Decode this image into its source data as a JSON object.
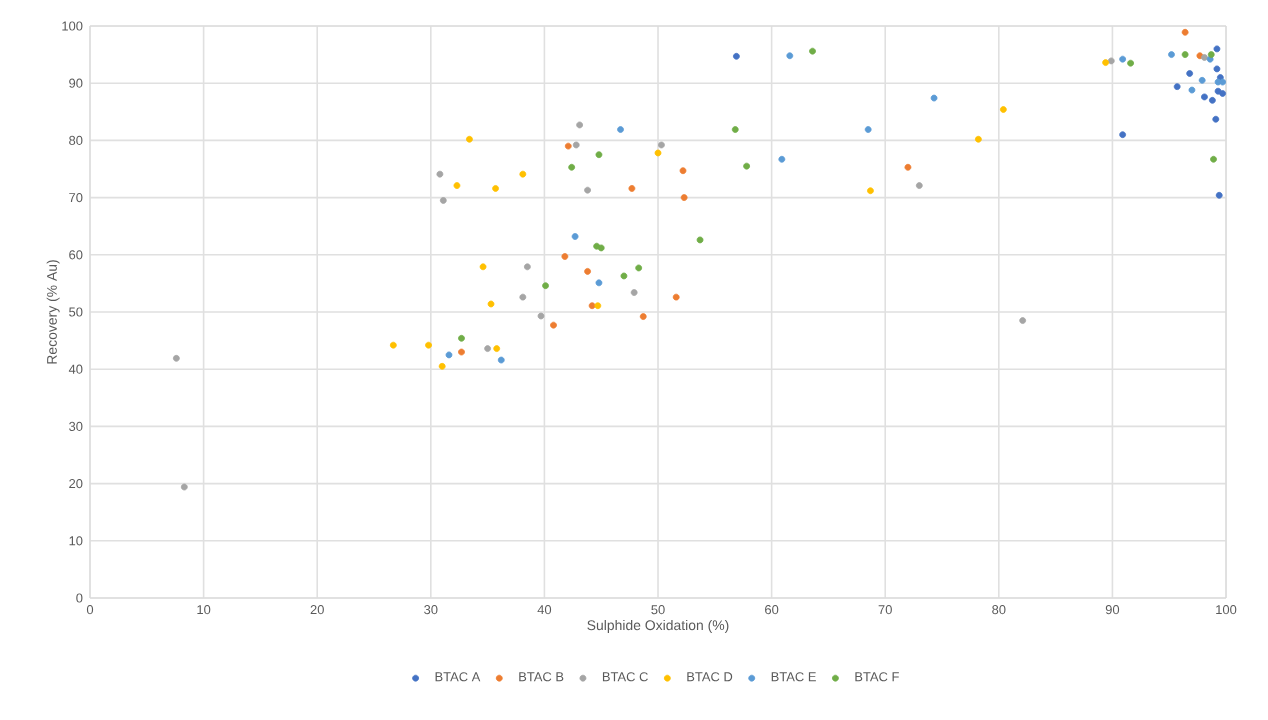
{
  "chart_data": {
    "type": "scatter",
    "xlabel": "Sulphide Oxidation (%)",
    "ylabel": "Recovery (% Au)",
    "xlim": [
      0,
      100
    ],
    "xticks": [
      0,
      10,
      20,
      30,
      40,
      50,
      60,
      70,
      80,
      90,
      100
    ],
    "ylim": [
      0,
      100
    ],
    "yticks": [
      0,
      10,
      20,
      30,
      40,
      50,
      60,
      70,
      80,
      90,
      100
    ],
    "grid": true,
    "legend": "bottom",
    "marker": "circle",
    "series": [
      {
        "name": "BTAC A",
        "color": "#4472c4",
        "x": [
          56.9,
          90.9,
          99.2,
          99.2,
          96.8,
          99.5,
          95.7,
          99.3,
          99.7,
          98.1,
          98.8,
          99.1,
          99.4
        ],
        "values": [
          94.7,
          81.0,
          96.0,
          92.5,
          91.7,
          91.0,
          89.4,
          88.6,
          88.2,
          87.6,
          87.0,
          83.7,
          70.4
        ]
      },
      {
        "name": "BTAC B",
        "color": "#ed7d31",
        "x": [
          32.7,
          42.1,
          52.2,
          47.7,
          52.3,
          41.8,
          43.8,
          51.6,
          44.2,
          48.7,
          40.8,
          72.0,
          96.4,
          97.7
        ],
        "values": [
          43.0,
          79.0,
          74.7,
          71.6,
          70.0,
          59.7,
          57.1,
          52.6,
          51.1,
          49.2,
          47.7,
          75.3,
          98.9,
          94.8
        ]
      },
      {
        "name": "BTAC C",
        "color": "#a5a5a5",
        "x": [
          7.6,
          8.3,
          43.1,
          42.8,
          50.3,
          30.8,
          43.8,
          31.1,
          38.5,
          47.9,
          38.1,
          39.7,
          35.0,
          73.0,
          82.1,
          89.9,
          98.1
        ],
        "values": [
          41.9,
          19.4,
          82.7,
          79.2,
          79.2,
          74.1,
          71.3,
          69.5,
          57.9,
          53.4,
          52.6,
          49.3,
          43.6,
          72.1,
          48.5,
          93.9,
          94.5
        ]
      },
      {
        "name": "BTAC D",
        "color": "#ffc000",
        "x": [
          26.7,
          29.8,
          31.0,
          33.4,
          50.0,
          38.1,
          32.3,
          35.7,
          34.6,
          35.3,
          44.7,
          35.8,
          80.4,
          78.2,
          68.7,
          89.4
        ],
        "values": [
          44.2,
          44.2,
          40.5,
          80.2,
          77.8,
          74.1,
          72.1,
          71.6,
          57.9,
          51.4,
          51.1,
          43.6,
          85.4,
          80.2,
          71.2,
          93.6
        ]
      },
      {
        "name": "BTAC E",
        "color": "#5b9bd5",
        "x": [
          31.6,
          46.7,
          42.7,
          44.8,
          36.2,
          61.6,
          74.3,
          68.5,
          60.9,
          90.9,
          95.2,
          98.6,
          97.9,
          99.3,
          99.7,
          97.0
        ],
        "values": [
          42.5,
          81.9,
          63.2,
          55.1,
          41.6,
          94.8,
          87.4,
          81.9,
          76.7,
          94.2,
          95.0,
          94.2,
          90.5,
          90.2,
          90.2,
          88.8
        ]
      },
      {
        "name": "BTAC F",
        "color": "#70ad47",
        "x": [
          32.7,
          56.8,
          44.8,
          57.8,
          42.4,
          44.6,
          45.0,
          53.7,
          48.3,
          47.0,
          40.1,
          63.6,
          91.6,
          96.4,
          98.7,
          98.9
        ],
        "values": [
          45.4,
          81.9,
          77.5,
          75.5,
          75.3,
          61.5,
          61.2,
          62.6,
          57.7,
          56.3,
          54.6,
          95.6,
          93.5,
          95.0,
          95.0,
          76.7
        ]
      }
    ]
  }
}
